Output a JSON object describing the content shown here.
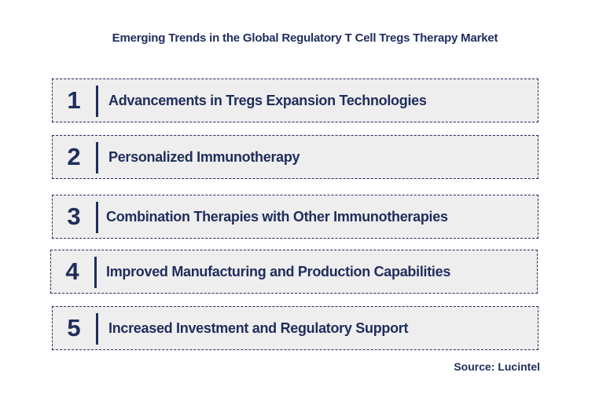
{
  "title": "Emerging Trends in the Global Regulatory T Cell Tregs Therapy Market",
  "items": [
    {
      "number": "1",
      "label": "Advancements in Tregs Expansion Technologies"
    },
    {
      "number": "2",
      "label": "Personalized Immunotherapy"
    },
    {
      "number": "3",
      "label": "Combination Therapies with Other Immunotherapies"
    },
    {
      "number": "4",
      "label": "Improved Manufacturing and Production Capabilities"
    },
    {
      "number": "5",
      "label": "Increased Investment and Regulatory Support"
    }
  ],
  "source": "Source: Lucintel",
  "colors": {
    "text": "#1f2d5c",
    "box_background": "#eeeeee",
    "box_border": "#1f2d5c"
  }
}
